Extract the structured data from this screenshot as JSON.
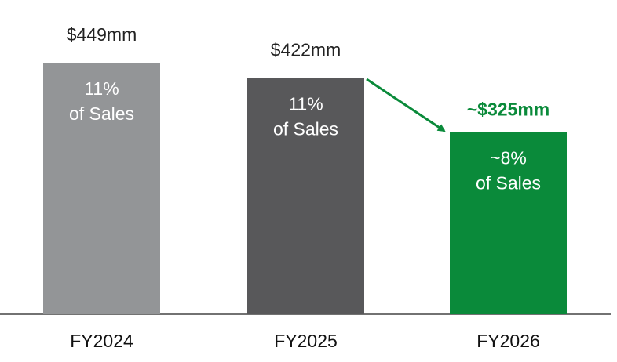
{
  "chart_data": {
    "type": "bar",
    "categories": [
      "FY2024",
      "FY2025",
      "FY2026"
    ],
    "values": [
      449,
      422,
      325
    ],
    "value_labels": [
      "$449mm",
      "$422mm",
      "~$325mm"
    ],
    "colors": [
      "#939597",
      "#58585a",
      "#0a8a3a"
    ],
    "value_label_colors": [
      "#222222",
      "#222222",
      "#0a8a3a"
    ],
    "value_label_bold": [
      false,
      false,
      true
    ],
    "inner_labels": [
      [
        "11%",
        "of Sales"
      ],
      [
        "11%",
        "of Sales"
      ],
      [
        "~8%",
        "of Sales"
      ]
    ]
  }
}
